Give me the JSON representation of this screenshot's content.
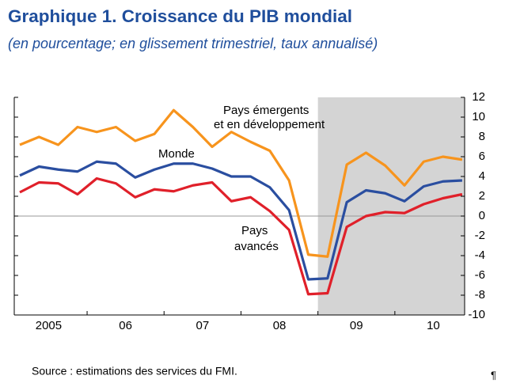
{
  "chart_data": {
    "type": "line",
    "title": "Graphique 1.  Croissance du PIB mondial",
    "subtitle": "(en pourcentage; en glissement trimestriel, taux annualisé)",
    "source": "Source : estimations des services du FMI.",
    "footer_mark": "¶",
    "categories": [
      "2005",
      null,
      null,
      null,
      "06",
      null,
      null,
      null,
      "07",
      null,
      null,
      null,
      "08",
      null,
      null,
      null,
      "09",
      null,
      null,
      null,
      "10",
      null,
      null,
      null
    ],
    "ylim": [
      -10,
      12
    ],
    "yticks": [
      -10,
      -8,
      -6,
      -4,
      -2,
      0,
      2,
      4,
      6,
      8,
      10,
      12
    ],
    "projection_start_index": 16,
    "series": [
      {
        "name": [
          "Pays émergents",
          "et en développement"
        ],
        "color": "#f7941d",
        "values": [
          7.2,
          8.0,
          7.2,
          9.0,
          8.5,
          9.0,
          7.6,
          8.3,
          10.7,
          9.0,
          7.0,
          8.5,
          7.5,
          6.6,
          3.6,
          -3.9,
          -4.1,
          5.2,
          6.4,
          5.1,
          3.1,
          5.5,
          6.0,
          5.7
        ]
      },
      {
        "name": [
          "Monde"
        ],
        "color": "#2a4ea0",
        "values": [
          4.1,
          5.0,
          4.7,
          4.5,
          5.5,
          5.3,
          3.9,
          4.7,
          5.3,
          5.3,
          4.8,
          4.0,
          4.0,
          2.9,
          0.6,
          -6.4,
          -6.3,
          1.4,
          2.6,
          2.3,
          1.5,
          3.0,
          3.5,
          3.6
        ]
      },
      {
        "name": [
          "Pays",
          "avancés"
        ],
        "color": "#e0202a",
        "values": [
          2.4,
          3.4,
          3.3,
          2.2,
          3.8,
          3.3,
          1.9,
          2.7,
          2.5,
          3.1,
          3.4,
          1.5,
          1.9,
          0.5,
          -1.4,
          -7.9,
          -7.8,
          -1.1,
          0.0,
          0.4,
          0.3,
          1.2,
          1.8,
          2.2
        ]
      }
    ]
  }
}
